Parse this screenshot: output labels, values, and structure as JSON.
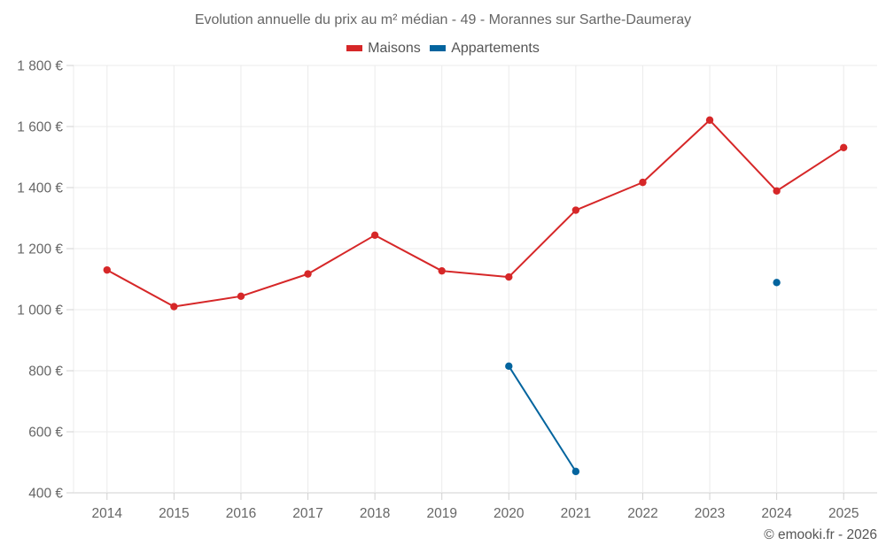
{
  "chart_data": {
    "type": "line",
    "title": "Evolution annuelle du prix au m² médian - 49 - Morannes sur Sarthe-Daumeray",
    "xlabel": "",
    "ylabel": "",
    "categories": [
      "2014",
      "2015",
      "2016",
      "2017",
      "2018",
      "2019",
      "2020",
      "2021",
      "2022",
      "2023",
      "2024",
      "2025"
    ],
    "ylim": [
      400,
      1800
    ],
    "yticks": [
      400,
      600,
      800,
      1000,
      1200,
      1400,
      1600,
      1800
    ],
    "ytick_labels": [
      "400 €",
      "600 €",
      "800 €",
      "1 000 €",
      "1 200 €",
      "1 400 €",
      "1 600 €",
      "1 800 €"
    ],
    "grid": true,
    "legend_position": "top-center",
    "series": [
      {
        "name": "Maisons",
        "color": "#d62728",
        "values": [
          1130,
          1010,
          1044,
          1117,
          1244,
          1127,
          1107,
          1326,
          1417,
          1621,
          1389,
          1531
        ]
      },
      {
        "name": "Appartements",
        "color": "#03649e",
        "values": [
          null,
          null,
          null,
          null,
          null,
          null,
          815,
          470,
          null,
          null,
          1089,
          null
        ]
      }
    ]
  },
  "credit": "© emooki.fr - 2026"
}
